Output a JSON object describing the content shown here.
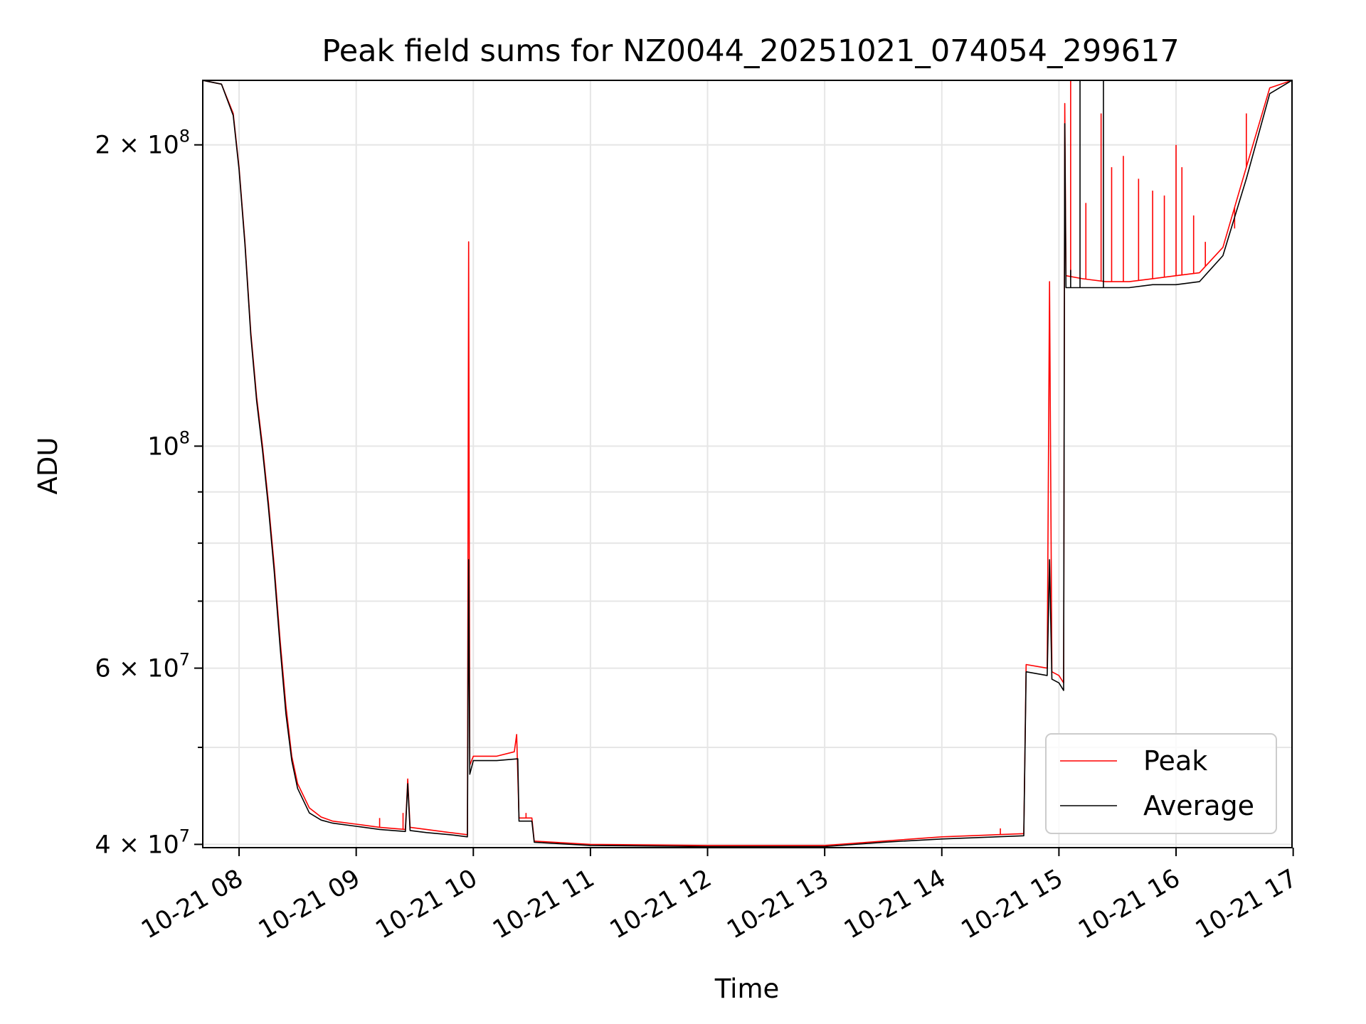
{
  "chart_data": {
    "type": "line",
    "title": "Peak field sums for NZ0044_20251021_074054_299617",
    "xlabel": "Time",
    "ylabel": "ADU",
    "yscale": "log",
    "xlim": [
      7.69,
      16.99
    ],
    "ylim": [
      39700000,
      232000000
    ],
    "grid": true,
    "legend_position": "lower-right",
    "x_ticks": [
      {
        "value": 8,
        "label": "10-21 08"
      },
      {
        "value": 9,
        "label": "10-21 09"
      },
      {
        "value": 10,
        "label": "10-21 10"
      },
      {
        "value": 11,
        "label": "10-21 11"
      },
      {
        "value": 12,
        "label": "10-21 12"
      },
      {
        "value": 13,
        "label": "10-21 13"
      },
      {
        "value": 14,
        "label": "10-21 14"
      },
      {
        "value": 15,
        "label": "10-21 15"
      },
      {
        "value": 16,
        "label": "10-21 16"
      },
      {
        "value": 17,
        "label": "10-21 17"
      }
    ],
    "y_major_ticks": [
      {
        "value": 40000000,
        "label_base": "4 × 10",
        "label_exp": "7"
      },
      {
        "value": 60000000,
        "label_base": "6 × 10",
        "label_exp": "7"
      },
      {
        "value": 100000000,
        "label_base": "10",
        "label_exp": "8"
      },
      {
        "value": 200000000,
        "label_base": "2 × 10",
        "label_exp": "8"
      }
    ],
    "y_minor_ticks": [
      50000000,
      70000000,
      80000000,
      90000000
    ],
    "series": [
      {
        "name": "Peak",
        "color": "#ff0000",
        "points": [
          [
            7.69,
            232000000
          ],
          [
            7.85,
            230000000
          ],
          [
            7.95,
            215000000
          ],
          [
            8.0,
            190000000
          ],
          [
            8.05,
            160000000
          ],
          [
            8.1,
            130000000
          ],
          [
            8.15,
            112000000
          ],
          [
            8.2,
            100000000
          ],
          [
            8.25,
            88000000
          ],
          [
            8.3,
            76000000
          ],
          [
            8.35,
            64000000
          ],
          [
            8.4,
            55000000
          ],
          [
            8.45,
            49000000
          ],
          [
            8.5,
            46000000
          ],
          [
            8.6,
            43500000
          ],
          [
            8.7,
            42600000
          ],
          [
            8.8,
            42200000
          ],
          [
            9.0,
            41900000
          ],
          [
            9.2,
            41600000
          ],
          [
            9.42,
            41400000
          ],
          [
            9.44,
            46500000
          ],
          [
            9.46,
            41600000
          ],
          [
            9.6,
            41400000
          ],
          [
            9.8,
            41100000
          ],
          [
            9.95,
            40900000
          ],
          [
            9.96,
            160000000
          ],
          [
            9.97,
            48000000
          ],
          [
            10.0,
            49000000
          ],
          [
            10.2,
            49000000
          ],
          [
            10.35,
            49500000
          ],
          [
            10.37,
            51500000
          ],
          [
            10.39,
            42500000
          ],
          [
            10.5,
            42500000
          ],
          [
            10.52,
            40300000
          ],
          [
            11.0,
            40000000
          ],
          [
            12.0,
            39900000
          ],
          [
            13.0,
            39900000
          ],
          [
            13.5,
            40300000
          ],
          [
            14.0,
            40700000
          ],
          [
            14.7,
            41000000
          ],
          [
            14.72,
            60500000
          ],
          [
            14.9,
            60000000
          ],
          [
            14.92,
            146000000
          ],
          [
            14.94,
            59500000
          ],
          [
            15.0,
            59000000
          ],
          [
            15.04,
            58000000
          ],
          [
            15.05,
            220000000
          ],
          [
            15.06,
            148000000
          ],
          [
            15.2,
            147000000
          ],
          [
            15.4,
            146000000
          ],
          [
            15.6,
            146000000
          ],
          [
            15.8,
            147000000
          ],
          [
            16.0,
            148000000
          ],
          [
            16.2,
            149000000
          ],
          [
            16.4,
            158000000
          ],
          [
            16.6,
            190000000
          ],
          [
            16.8,
            228000000
          ],
          [
            16.99,
            232000000
          ]
        ],
        "spikes": [
          [
            15.1,
            232000000
          ],
          [
            15.23,
            175000000
          ],
          [
            15.36,
            215000000
          ],
          [
            15.45,
            190000000
          ],
          [
            15.55,
            195000000
          ],
          [
            15.68,
            185000000
          ],
          [
            15.8,
            180000000
          ],
          [
            15.9,
            178000000
          ],
          [
            16.0,
            200000000
          ],
          [
            16.05,
            190000000
          ],
          [
            16.15,
            170000000
          ],
          [
            16.25,
            160000000
          ],
          [
            16.5,
            165000000
          ],
          [
            16.6,
            215000000
          ],
          [
            9.4,
            43000000
          ],
          [
            9.2,
            42500000
          ],
          [
            10.45,
            43000000
          ],
          [
            14.5,
            41500000
          ]
        ]
      },
      {
        "name": "Average",
        "color": "#000000",
        "points": [
          [
            7.69,
            232000000
          ],
          [
            7.85,
            230000000
          ],
          [
            7.95,
            214000000
          ],
          [
            8.0,
            189000000
          ],
          [
            8.05,
            159000000
          ],
          [
            8.1,
            129000000
          ],
          [
            8.15,
            111000000
          ],
          [
            8.2,
            99000000
          ],
          [
            8.25,
            87000000
          ],
          [
            8.3,
            75000000
          ],
          [
            8.35,
            63000000
          ],
          [
            8.4,
            54000000
          ],
          [
            8.45,
            48500000
          ],
          [
            8.5,
            45500000
          ],
          [
            8.6,
            43000000
          ],
          [
            8.7,
            42300000
          ],
          [
            8.8,
            42000000
          ],
          [
            9.0,
            41700000
          ],
          [
            9.2,
            41400000
          ],
          [
            9.42,
            41200000
          ],
          [
            9.44,
            46000000
          ],
          [
            9.46,
            41300000
          ],
          [
            9.6,
            41100000
          ],
          [
            9.8,
            40900000
          ],
          [
            9.95,
            40700000
          ],
          [
            9.96,
            77000000
          ],
          [
            9.97,
            47000000
          ],
          [
            10.0,
            48500000
          ],
          [
            10.2,
            48500000
          ],
          [
            10.38,
            48700000
          ],
          [
            10.39,
            42200000
          ],
          [
            10.5,
            42200000
          ],
          [
            10.52,
            40200000
          ],
          [
            11.0,
            39900000
          ],
          [
            12.0,
            39800000
          ],
          [
            13.0,
            39800000
          ],
          [
            13.5,
            40200000
          ],
          [
            14.0,
            40500000
          ],
          [
            14.7,
            40800000
          ],
          [
            14.72,
            59500000
          ],
          [
            14.9,
            59000000
          ],
          [
            14.92,
            77000000
          ],
          [
            14.94,
            58500000
          ],
          [
            15.0,
            58000000
          ],
          [
            15.04,
            57000000
          ],
          [
            15.05,
            210000000
          ],
          [
            15.06,
            144000000
          ],
          [
            15.2,
            144000000
          ],
          [
            15.4,
            144000000
          ],
          [
            15.6,
            144000000
          ],
          [
            15.8,
            145000000
          ],
          [
            16.0,
            145000000
          ],
          [
            16.2,
            146000000
          ],
          [
            16.4,
            155000000
          ],
          [
            16.6,
            185000000
          ],
          [
            16.8,
            225000000
          ],
          [
            16.99,
            232000000
          ]
        ],
        "spikes": [
          [
            15.18,
            232000000
          ],
          [
            15.38,
            232000000
          ],
          [
            15.1,
            150000000
          ]
        ]
      }
    ]
  }
}
